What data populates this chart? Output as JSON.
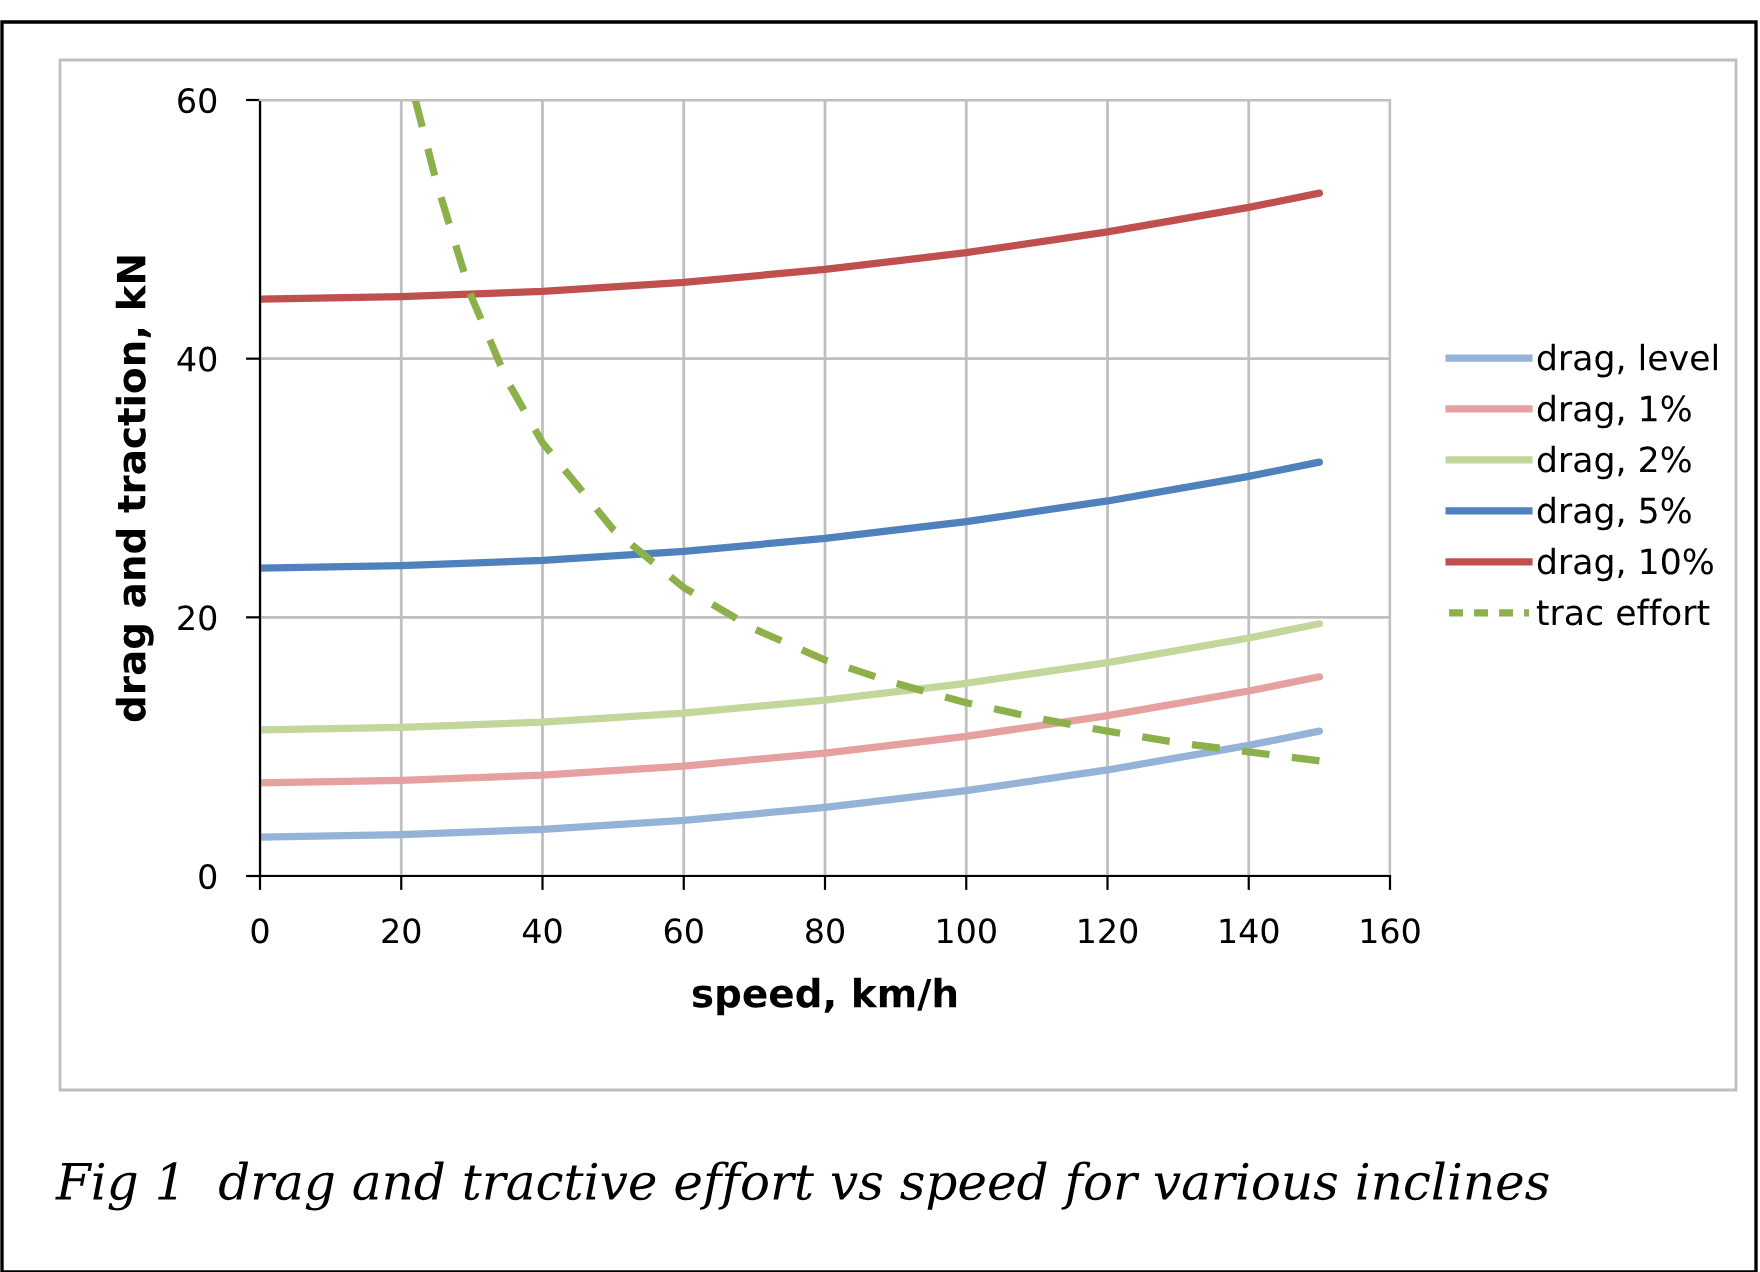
{
  "chart_data": {
    "type": "line",
    "xlabel": "speed, km/h",
    "ylabel": "drag and traction, kN",
    "x": [
      0,
      20,
      40,
      60,
      80,
      100,
      120,
      140,
      150
    ],
    "xlim": [
      0,
      160
    ],
    "xticks": [
      0,
      20,
      40,
      60,
      80,
      100,
      120,
      140,
      160
    ],
    "ylim": [
      0,
      60
    ],
    "yticks": [
      0,
      20,
      40,
      60
    ],
    "grid": true,
    "legend": "right",
    "line_style": "solid",
    "series": [
      {
        "name": "drag, level",
        "color": "#95b3d7",
        "values": [
          3.0,
          3.2,
          3.6,
          4.3,
          5.3,
          6.6,
          8.2,
          10.1,
          11.2
        ]
      },
      {
        "name": "drag, 1%",
        "color": "#e6a0a0",
        "values": [
          7.2,
          7.4,
          7.8,
          8.5,
          9.5,
          10.8,
          12.4,
          14.3,
          15.4
        ]
      },
      {
        "name": "drag, 2%",
        "color": "#c3d69b",
        "values": [
          11.3,
          11.5,
          11.9,
          12.6,
          13.6,
          14.9,
          16.5,
          18.4,
          19.5
        ]
      },
      {
        "name": "drag, 5%",
        "color": "#4f81bd",
        "values": [
          23.8,
          24.0,
          24.4,
          25.1,
          26.1,
          27.4,
          29.0,
          30.9,
          32.0
        ]
      },
      {
        "name": "drag, 10%",
        "color": "#c0504d",
        "values": [
          44.6,
          44.8,
          45.2,
          45.9,
          46.9,
          48.2,
          49.8,
          51.7,
          52.8
        ]
      },
      {
        "name": "trac effort",
        "color": "#8cb04a",
        "line_style": "dashed",
        "x": [
          22,
          25,
          30,
          35,
          40,
          50,
          60,
          70,
          80,
          90,
          100,
          110,
          120,
          130,
          140,
          150
        ],
        "values": [
          60,
          53.6,
          44.7,
          38.3,
          33.5,
          26.8,
          22.3,
          19.1,
          16.7,
          14.9,
          13.4,
          12.2,
          11.2,
          10.3,
          9.6,
          8.9
        ]
      }
    ],
    "annotations": [
      "Fig 1  drag and tractive effort vs speed for various inclines"
    ]
  }
}
